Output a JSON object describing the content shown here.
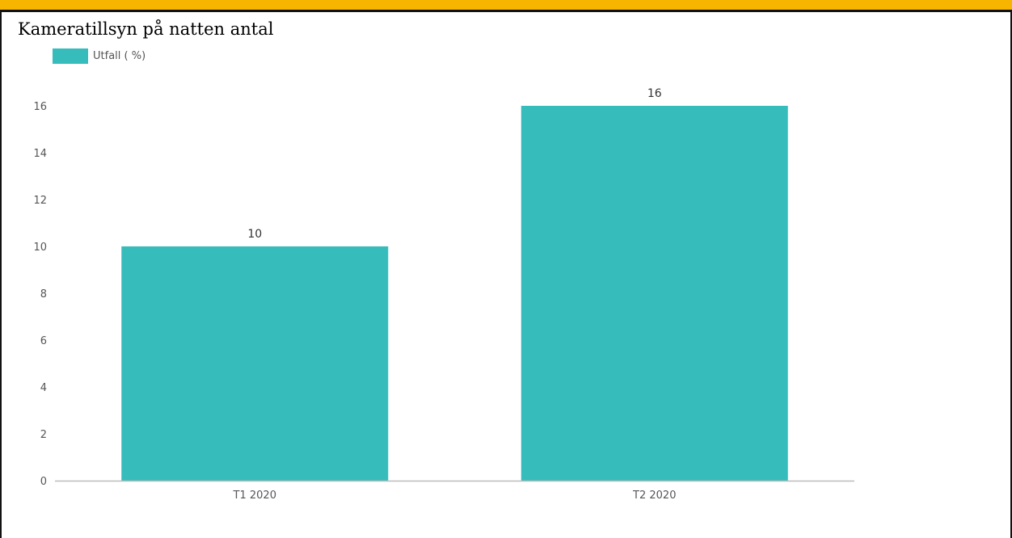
{
  "colors": {
    "bar": "#37bcbc",
    "top_band": "#f7b500",
    "axis": "#bdbdbd"
  },
  "chart_data": {
    "type": "bar",
    "title": "Kameratillsyn på natten antal",
    "categories": [
      "T1 2020",
      "T2 2020"
    ],
    "series": [
      {
        "name": "Utfall ( %)",
        "values": [
          10,
          16
        ]
      }
    ],
    "ylim": [
      0,
      16
    ],
    "yticks": [
      0,
      2,
      4,
      6,
      8,
      10,
      12,
      14,
      16
    ],
    "xlabel": "",
    "ylabel": "",
    "grid": false,
    "legend": "top-left",
    "data_labels": true
  }
}
